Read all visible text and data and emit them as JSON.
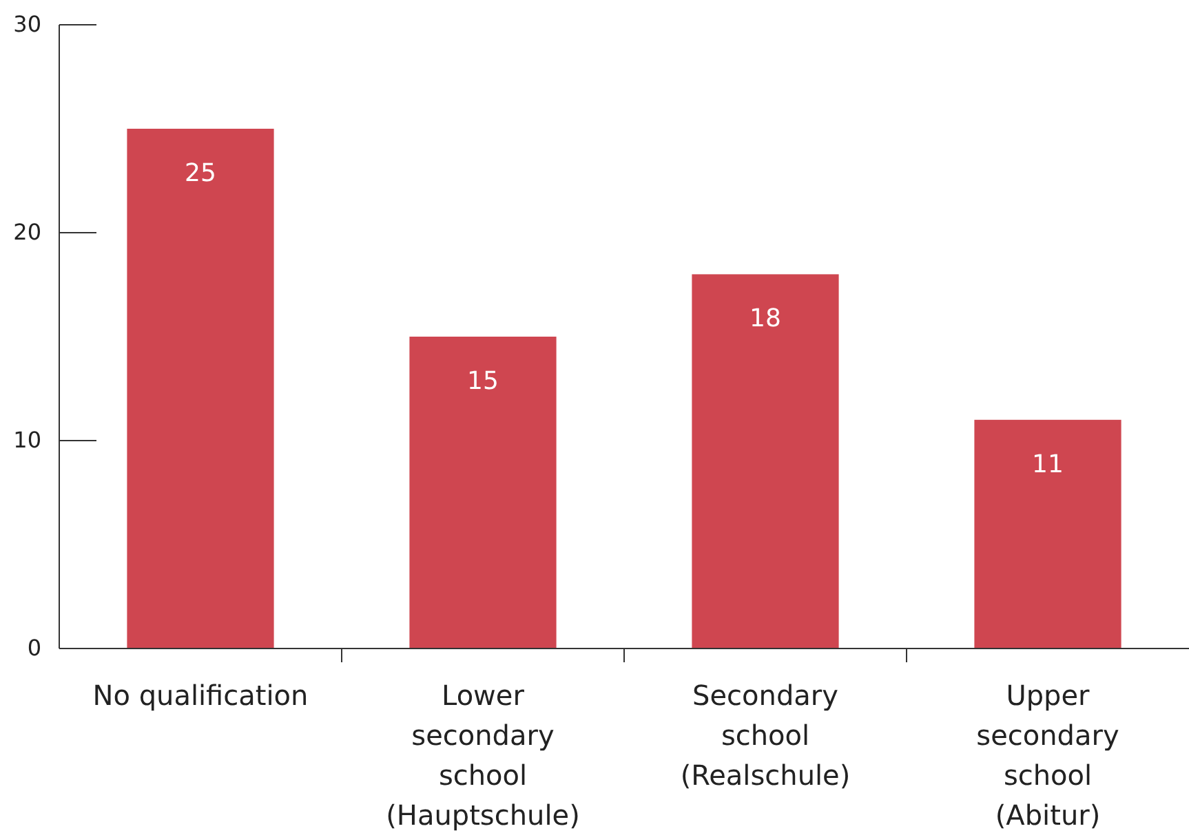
{
  "chart_data": {
    "type": "bar",
    "categories": [
      "No qualification",
      "Lower\nsecondary\nschool\n(Hauptschule)",
      "Secondary\nschool\n(Realschule)",
      "Upper\nsecondary\nschool\n(Abitur)"
    ],
    "values": [
      25,
      15,
      18,
      11
    ],
    "color": "#cf4650",
    "ylim": [
      0,
      30
    ],
    "yticks": [
      0,
      10,
      20,
      30
    ],
    "data_labels": true,
    "grid": false
  }
}
